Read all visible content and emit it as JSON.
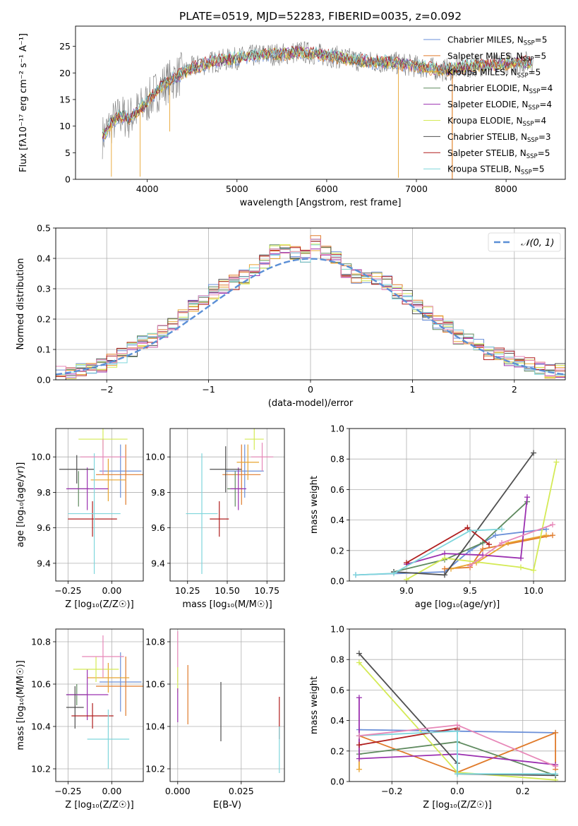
{
  "chart_data": [
    {
      "type": "line",
      "panel": "spectrum",
      "title": "PLATE=0519, MJD=52283, FIBERID=0035, z=0.092",
      "xlabel": "wavelength [Angstrom, rest frame]",
      "ylabel": "Flux [fλ10⁻¹⁷ erg cm⁻² s⁻¹ A⁻¹]",
      "xlim": [
        3200,
        8660
      ],
      "ylim": [
        0,
        28.8
      ],
      "xticks": [
        4000,
        5000,
        6000,
        7000,
        8000
      ],
      "yticks": [
        0,
        5,
        10,
        15,
        20,
        25
      ],
      "grid": false,
      "legend_placement": "top-right",
      "series": [
        {
          "name": "Chabrier MILES, N",
          "sub": "SSP",
          "suffix": "=5",
          "color": "#6a8fd8",
          "key": "CM"
        },
        {
          "name": "Salpeter MILES, N",
          "sub": "SSP",
          "suffix": "=5",
          "color": "#e07b2b",
          "key": "SM"
        },
        {
          "name": "Kroupa MILES, N",
          "sub": "SSP",
          "suffix": "=5",
          "color": "#e8a531",
          "key": "KM"
        },
        {
          "name": "Chabrier ELODIE, N",
          "sub": "SSP",
          "suffix": "=4",
          "color": "#5f8a5f",
          "key": "CE"
        },
        {
          "name": "Salpeter ELODIE, N",
          "sub": "SSP",
          "suffix": "=4",
          "color": "#9b30b0",
          "key": "SE"
        },
        {
          "name": "Kroupa ELODIE, N",
          "sub": "SSP",
          "suffix": "=4",
          "color": "#d4ea55",
          "key": "KE"
        },
        {
          "name": "Chabrier STELIB, N",
          "sub": "SSP",
          "suffix": "=3",
          "color": "#4f4f4f",
          "key": "CS"
        },
        {
          "name": "Salpeter STELIB, N",
          "sub": "SSP",
          "suffix": "=5",
          "color": "#b01e1e",
          "key": "SS"
        },
        {
          "name": "Kroupa STELIB, N",
          "sub": "SSP",
          "suffix": "=5",
          "color": "#7fd6dc",
          "key": "KS"
        }
      ],
      "envelope": {
        "x": [
          3500,
          3600,
          3700,
          3800,
          3900,
          4000,
          4100,
          4200,
          4300,
          4400,
          4500,
          4700,
          4900,
          5100,
          5300,
          5500,
          5700,
          5900,
          6100,
          6300,
          6500,
          6700,
          6900,
          7100,
          7300,
          7500,
          7700,
          7900,
          8100,
          8300
        ],
        "y": [
          8,
          10.5,
          12,
          11.5,
          13,
          14.5,
          16.5,
          18,
          19,
          20,
          21,
          22,
          22.5,
          23,
          23.5,
          23.5,
          24,
          23.5,
          23,
          22.5,
          22,
          22,
          21.5,
          21,
          20.5,
          21,
          21.5,
          21.5,
          22,
          22
        ]
      }
    },
    {
      "type": "line",
      "panel": "residuals",
      "xlabel": "(data-model)/error",
      "ylabel": "Normed distribution",
      "xlim": [
        -2.5,
        2.5
      ],
      "ylim": [
        0,
        0.5
      ],
      "xticks": [
        -2,
        -1,
        0,
        1,
        2
      ],
      "yticks": [
        0.0,
        0.1,
        0.2,
        0.3,
        0.4,
        0.5
      ],
      "grid": true,
      "legend_placement": "top-right",
      "reference_label": "𝒩(0, 1)",
      "bin_centers": [
        -2.45,
        -2.35,
        -2.25,
        -2.15,
        -2.05,
        -1.95,
        -1.85,
        -1.75,
        -1.65,
        -1.55,
        -1.45,
        -1.35,
        -1.25,
        -1.15,
        -1.05,
        -0.95,
        -0.85,
        -0.75,
        -0.65,
        -0.55,
        -0.45,
        -0.35,
        -0.25,
        -0.15,
        -0.05,
        0.05,
        0.15,
        0.25,
        0.35,
        0.45,
        0.55,
        0.65,
        0.75,
        0.85,
        0.95,
        1.05,
        1.15,
        1.25,
        1.35,
        1.45,
        1.55,
        1.65,
        1.75,
        1.85,
        1.95,
        2.05,
        2.15,
        2.25,
        2.35,
        2.45
      ],
      "histogram_values": [
        0.02,
        0.02,
        0.03,
        0.03,
        0.05,
        0.06,
        0.08,
        0.1,
        0.12,
        0.13,
        0.16,
        0.18,
        0.22,
        0.25,
        0.27,
        0.29,
        0.31,
        0.32,
        0.34,
        0.36,
        0.39,
        0.42,
        0.43,
        0.42,
        0.41,
        0.45,
        0.42,
        0.4,
        0.36,
        0.34,
        0.34,
        0.33,
        0.32,
        0.29,
        0.27,
        0.24,
        0.22,
        0.19,
        0.17,
        0.14,
        0.13,
        0.11,
        0.09,
        0.08,
        0.07,
        0.06,
        0.05,
        0.04,
        0.03,
        0.03
      ]
    },
    {
      "type": "scatter",
      "panel": "age-vs-Z",
      "xlabel": "Z [log₁₀(Z/Z☉)]",
      "ylabel": "age  [log₁₀(age/yr)]",
      "xlim": [
        -0.32,
        0.18
      ],
      "ylim": [
        9.3,
        10.16
      ],
      "xticks": [
        -0.25,
        0.0
      ],
      "xticklabels": [
        "−0.25",
        "0.00"
      ],
      "yticks": [
        9.4,
        9.6,
        9.8,
        10.0
      ],
      "grid": true,
      "points": [
        {
          "key": "CM",
          "x": 0.05,
          "xerr": 0.12,
          "y": 9.92,
          "yerr": 0.15
        },
        {
          "key": "SM",
          "x": 0.08,
          "xerr": 0.17,
          "y": 9.9,
          "yerr": 0.17
        },
        {
          "key": "KM",
          "x": -0.02,
          "xerr": 0.1,
          "y": 9.87,
          "yerr": 0.12
        },
        {
          "key": "CE",
          "x": -0.19,
          "xerr": 0.06,
          "y": 9.82,
          "yerr": 0.1
        },
        {
          "key": "SE",
          "x": -0.14,
          "xerr": 0.12,
          "y": 9.82,
          "yerr": 0.12
        },
        {
          "key": "KE",
          "x": -0.05,
          "xerr": 0.14,
          "y": 10.1,
          "yerr": 0.06
        },
        {
          "key": "CS",
          "x": -0.2,
          "xerr": 0.1,
          "y": 9.93,
          "yerr": 0.08
        },
        {
          "key": "SS",
          "x": -0.11,
          "xerr": 0.14,
          "y": 9.65,
          "yerr": 0.1
        },
        {
          "key": "KS",
          "x": -0.1,
          "xerr": 0.15,
          "y": 9.68,
          "yerr": 0.34
        },
        {
          "key": "PK",
          "x": -0.05,
          "xerr": 0.13,
          "y": 10.0,
          "yerr": 0.1
        }
      ]
    },
    {
      "type": "scatter",
      "panel": "age-vs-mass",
      "xlabel": "mass [log₁₀(M/M☉)]",
      "ylabel": "",
      "xlim": [
        10.14,
        10.86
      ],
      "ylim": [
        9.3,
        10.16
      ],
      "xticks": [
        10.25,
        10.5,
        10.75
      ],
      "xticklabels": [
        "10.25",
        "10.50",
        "10.75"
      ],
      "yticks": [
        9.4,
        9.6,
        9.8,
        10.0
      ],
      "grid": true,
      "points": [
        {
          "key": "CM",
          "x": 10.61,
          "xerr": 0.12,
          "y": 9.92,
          "yerr": 0.15
        },
        {
          "key": "SM",
          "x": 10.59,
          "xerr": 0.12,
          "y": 9.9,
          "yerr": 0.17
        },
        {
          "key": "KM",
          "x": 10.63,
          "xerr": 0.07,
          "y": 9.97,
          "yerr": 0.1
        },
        {
          "key": "CE",
          "x": 10.55,
          "xerr": 0.05,
          "y": 9.82,
          "yerr": 0.1
        },
        {
          "key": "SE",
          "x": 10.57,
          "xerr": 0.05,
          "y": 9.82,
          "yerr": 0.12
        },
        {
          "key": "KE",
          "x": 10.67,
          "xerr": 0.06,
          "y": 10.1,
          "yerr": 0.06
        },
        {
          "key": "CS",
          "x": 10.49,
          "xerr": 0.1,
          "y": 9.93,
          "yerr": 0.13
        },
        {
          "key": "SS",
          "x": 10.45,
          "xerr": 0.06,
          "y": 9.65,
          "yerr": 0.1
        },
        {
          "key": "KS",
          "x": 10.34,
          "xerr": 0.1,
          "y": 9.68,
          "yerr": 0.34
        },
        {
          "key": "PK",
          "x": 10.72,
          "xerr": 0.07,
          "y": 10.0,
          "yerr": 0.08
        }
      ]
    },
    {
      "type": "line",
      "panel": "mass-weight-vs-age",
      "xlabel": "age  [log₁₀(age/yr)]",
      "ylabel": "mass weight",
      "xlim": [
        8.55,
        10.25
      ],
      "ylim": [
        0,
        1.0
      ],
      "xticks": [
        9.0,
        9.5,
        10.0
      ],
      "yticks": [
        0.0,
        0.2,
        0.4,
        0.6,
        0.8,
        1.0
      ],
      "grid": true,
      "series": [
        {
          "key": "CM",
          "x": [
            8.6,
            9.3,
            9.5,
            9.7,
            10.1
          ],
          "y": [
            0.04,
            0.06,
            0.2,
            0.3,
            0.34
          ]
        },
        {
          "key": "SM",
          "x": [
            9.3,
            9.5,
            9.6,
            10.15
          ],
          "y": [
            0.08,
            0.09,
            0.21,
            0.3
          ]
        },
        {
          "key": "KM",
          "x": [
            9.35,
            9.55,
            9.8,
            10.1
          ],
          "y": [
            0.08,
            0.12,
            0.25,
            0.3
          ]
        },
        {
          "key": "CE",
          "x": [
            8.9,
            9.3,
            9.6,
            9.95
          ],
          "y": [
            0.06,
            0.14,
            0.25,
            0.52
          ]
        },
        {
          "key": "SE",
          "x": [
            9.0,
            9.3,
            9.6,
            9.9,
            9.95
          ],
          "y": [
            0.11,
            0.18,
            0.17,
            0.15,
            0.55
          ]
        },
        {
          "key": "KE",
          "x": [
            9.0,
            9.3,
            9.9,
            10.0,
            10.18
          ],
          "y": [
            0.01,
            0.15,
            0.09,
            0.07,
            0.78
          ]
        },
        {
          "key": "CS",
          "x": [
            8.9,
            9.3,
            10.0
          ],
          "y": [
            0.06,
            0.04,
            0.84
          ]
        },
        {
          "key": "SS",
          "x": [
            9.0,
            9.48,
            9.65
          ],
          "y": [
            0.12,
            0.35,
            0.24
          ]
        },
        {
          "key": "KS",
          "x": [
            8.6,
            8.9,
            9.5,
            9.75
          ],
          "y": [
            0.04,
            0.05,
            0.33,
            0.34
          ]
        },
        {
          "key": "PK",
          "x": [
            9.5,
            9.75,
            10.15
          ],
          "y": [
            0.1,
            0.25,
            0.37
          ]
        }
      ]
    },
    {
      "type": "scatter",
      "panel": "mass-vs-Z",
      "xlabel": "Z [log₁₀(Z/Z☉)]",
      "ylabel": "mass [log₁₀(M/M☉)]",
      "xlim": [
        -0.32,
        0.18
      ],
      "ylim": [
        10.14,
        10.86
      ],
      "xticks": [
        -0.25,
        0.0
      ],
      "xticklabels": [
        "−0.25",
        "0.00"
      ],
      "yticks": [
        10.2,
        10.4,
        10.6,
        10.8
      ],
      "grid": true,
      "points": [
        {
          "key": "CM",
          "x": 0.05,
          "xerr": 0.12,
          "y": 10.61,
          "yerr": 0.14
        },
        {
          "key": "SM",
          "x": 0.08,
          "xerr": 0.17,
          "y": 10.59,
          "yerr": 0.14
        },
        {
          "key": "KM",
          "x": -0.02,
          "xerr": 0.12,
          "y": 10.63,
          "yerr": 0.07
        },
        {
          "key": "CE",
          "x": -0.2,
          "xerr": 0.06,
          "y": 10.55,
          "yerr": 0.05
        },
        {
          "key": "SE",
          "x": -0.14,
          "xerr": 0.12,
          "y": 10.55,
          "yerr": 0.12
        },
        {
          "key": "KE",
          "x": -0.09,
          "xerr": 0.13,
          "y": 10.67,
          "yerr": 0.06
        },
        {
          "key": "CS",
          "x": -0.21,
          "xerr": 0.05,
          "y": 10.49,
          "yerr": 0.1
        },
        {
          "key": "SS",
          "x": -0.11,
          "xerr": 0.12,
          "y": 10.45,
          "yerr": 0.06
        },
        {
          "key": "KS",
          "x": -0.02,
          "xerr": 0.12,
          "y": 10.34,
          "yerr": 0.14
        },
        {
          "key": "PK",
          "x": -0.05,
          "xerr": 0.12,
          "y": 10.73,
          "yerr": 0.1
        }
      ]
    },
    {
      "type": "scatter",
      "panel": "mass-vs-EBV",
      "xlabel": "E(B-V)",
      "ylabel": "",
      "xlim": [
        -0.003,
        0.042
      ],
      "ylim": [
        10.14,
        10.86
      ],
      "xticks": [
        0.0,
        0.025
      ],
      "xticklabels": [
        "0.000",
        "0.025"
      ],
      "yticks": [
        10.2,
        10.4,
        10.6,
        10.8
      ],
      "grid": true,
      "points": [
        {
          "key": "PK",
          "x": 0.0,
          "xerr": 0,
          "y": 10.73,
          "yerr": 0.12
        },
        {
          "key": "KE",
          "x": 0.0,
          "xerr": 0,
          "y": 10.62,
          "yerr": 0.06
        },
        {
          "key": "SE",
          "x": 0.0,
          "xerr": 0,
          "y": 10.5,
          "yerr": 0.08
        },
        {
          "key": "SM",
          "x": 0.004,
          "xerr": 0,
          "y": 10.55,
          "yerr": 0.14
        },
        {
          "key": "CS",
          "x": 0.017,
          "xerr": 0,
          "y": 10.47,
          "yerr": 0.14
        },
        {
          "key": "SS",
          "x": 0.04,
          "xerr": 0,
          "y": 10.44,
          "yerr": 0.1
        },
        {
          "key": "KS",
          "x": 0.04,
          "xerr": 0,
          "y": 10.29,
          "yerr": 0.11
        }
      ]
    },
    {
      "type": "line",
      "panel": "mass-weight-vs-Z",
      "xlabel": "Z [log₁₀(Z/Z☉)]",
      "ylabel": "mass weight",
      "xlim": [
        -0.33,
        0.33
      ],
      "ylim": [
        0,
        1.0
      ],
      "xticks": [
        -0.2,
        0.0,
        0.2
      ],
      "xticklabels": [
        "−0.2",
        "0.0",
        "0.2"
      ],
      "yticks": [
        0.0,
        0.2,
        0.4,
        0.6,
        0.8,
        1.0
      ],
      "grid": true,
      "series": [
        {
          "key": "CM",
          "x": [
            -0.3,
            0.0,
            0.3
          ],
          "y": [
            0.34,
            0.33,
            0.32
          ]
        },
        {
          "key": "SM",
          "x": [
            -0.3,
            0.0,
            0.3,
            0.3
          ],
          "y": [
            0.3,
            0.06,
            0.32,
            0.08
          ]
        },
        {
          "key": "KM",
          "x": [
            -0.3,
            -0.3
          ],
          "y": [
            0.08,
            0.3
          ]
        },
        {
          "key": "CE",
          "x": [
            -0.3,
            0.0,
            0.3
          ],
          "y": [
            0.18,
            0.26,
            0.04
          ]
        },
        {
          "key": "SE",
          "x": [
            -0.3,
            -0.3,
            0.0,
            0.3
          ],
          "y": [
            0.55,
            0.15,
            0.18,
            0.11
          ]
        },
        {
          "key": "KE",
          "x": [
            -0.3,
            0.0,
            0.3
          ],
          "y": [
            0.78,
            0.06,
            0.01
          ]
        },
        {
          "key": "CS",
          "x": [
            -0.3,
            0.0,
            0.0,
            0.3
          ],
          "y": [
            0.84,
            0.12,
            0.05,
            0.04
          ]
        },
        {
          "key": "SS",
          "x": [
            -0.3,
            0.0,
            0.0
          ],
          "y": [
            0.24,
            0.35,
            0.34
          ]
        },
        {
          "key": "KS",
          "x": [
            -0.3,
            0.0,
            0.0,
            0.3
          ],
          "y": [
            0.3,
            0.33,
            0.05,
            0.05
          ]
        },
        {
          "key": "PK",
          "x": [
            -0.3,
            0.0,
            0.3
          ],
          "y": [
            0.3,
            0.37,
            0.1
          ]
        }
      ]
    }
  ],
  "extra_colors": {
    "PK": "#e787b8"
  }
}
